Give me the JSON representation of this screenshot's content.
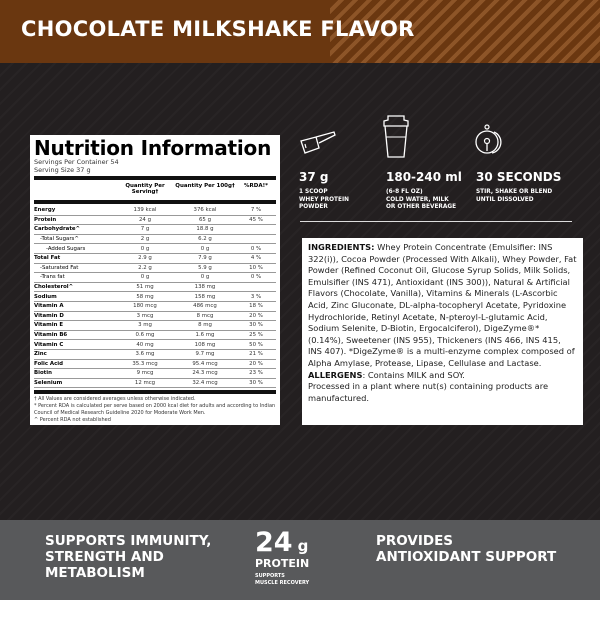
{
  "header": {
    "title": "CHOCOLATE MILKSHAKE FLAVOR",
    "color": "#6a3710"
  },
  "nutrition": {
    "title": "Nutrition Information",
    "servings_per_container": "Servings Per Container 54",
    "serving_size": "Serving Size 37 g",
    "columns": [
      "",
      "Quantity Per Serving†",
      "Quantity Per 100g†",
      "%RDA!*"
    ],
    "rows": [
      {
        "name": "Energy",
        "per_serving": "139 kcal",
        "per_100g": "376 kcal",
        "rda": "7 %"
      },
      {
        "name": "Protein",
        "per_serving": "24 g",
        "per_100g": "65 g",
        "rda": "45 %"
      },
      {
        "name": "Carbohydrate^",
        "per_serving": "7 g",
        "per_100g": "18.8 g",
        "rda": ""
      },
      {
        "name": "-Total Sugars^",
        "per_serving": "2 g",
        "per_100g": "6.2 g",
        "rda": ""
      },
      {
        "name": "-Added Sugars",
        "per_serving": "0 g",
        "per_100g": "0 g",
        "rda": "0 %"
      },
      {
        "name": "Total Fat",
        "per_serving": "2.9 g",
        "per_100g": "7.9 g",
        "rda": "4 %"
      },
      {
        "name": "-Saturated Fat",
        "per_serving": "2.2 g",
        "per_100g": "5.9 g",
        "rda": "10 %"
      },
      {
        "name": "-Trans fat",
        "per_serving": "0 g",
        "per_100g": "0 g",
        "rda": "0 %"
      },
      {
        "name": "Cholesterol^",
        "per_serving": "51 mg",
        "per_100g": "138 mg",
        "rda": ""
      },
      {
        "name": "Sodium",
        "per_serving": "58 mg",
        "per_100g": "158 mg",
        "rda": "3 %"
      },
      {
        "name": "Vitamin A",
        "per_serving": "180 mcg",
        "per_100g": "486 mcg",
        "rda": "18 %"
      },
      {
        "name": "Vitamin D",
        "per_serving": "3 mcg",
        "per_100g": "8 mcg",
        "rda": "20 %"
      },
      {
        "name": "Vitamin E",
        "per_serving": "3 mg",
        "per_100g": "8 mg",
        "rda": "30 %"
      },
      {
        "name": "Vitamin B6",
        "per_serving": "0.6 mg",
        "per_100g": "1.6 mg",
        "rda": "25 %"
      },
      {
        "name": "Vitamin C",
        "per_serving": "40 mg",
        "per_100g": "108 mg",
        "rda": "50 %"
      },
      {
        "name": "Zinc",
        "per_serving": "3.6 mg",
        "per_100g": "9.7 mg",
        "rda": "21 %"
      },
      {
        "name": "Folic Acid",
        "per_serving": "35.3 mcg",
        "per_100g": "95.4 mcg",
        "rda": "20 %"
      },
      {
        "name": "Biotin",
        "per_serving": "9 mcg",
        "per_100g": "24.3 mcg",
        "rda": "23 %"
      },
      {
        "name": "Selenium",
        "per_serving": "12 mcg",
        "per_100g": "32.4 mcg",
        "rda": "30 %"
      }
    ],
    "footnotes": [
      "† All Values are considered averages unless otherwise indicated.",
      "* Percent RDA is calculated per serve based on 2000 kcal diet for adults and according to Indian Council of Medical Research Guideline 2020 for Moderate Work Men.",
      "^ Percent RDA not established"
    ]
  },
  "directions": [
    {
      "icon": "scoop-icon",
      "value": "37 g",
      "text": [
        "1 SCOOP",
        "WHEY PROTEIN",
        "POWDER"
      ]
    },
    {
      "icon": "shaker-icon",
      "value": "180-240 ml",
      "text": [
        "(6-8 FL OZ)",
        "COLD WATER, MILK",
        "OR OTHER BEVERAGE"
      ]
    },
    {
      "icon": "timer-icon",
      "value": "30 SECONDS",
      "text": [
        "STIR, SHAKE OR BLEND",
        "UNTIL DISSOLVED"
      ]
    }
  ],
  "ingredients": {
    "label": "INGREDIENTS:",
    "text": " Whey Protein Concentrate (Emulsifier: INS 322(i)), Cocoa Powder (Processed With Alkali), Whey Powder, Fat Powder (Refined Coconut Oil, Glucose Syrup Solids, Milk Solids, Emulsifier (INS 471), Antioxidant (INS 300)), Natural & Artificial Flavors (Chocolate, Vanilla), Vitamins & Minerals (L-Ascorbic Acid, Zinc Gluconate, DL-alpha-tocopheryl Acetate, Pyridoxine Hydrochloride, Retinyl Acetate, N-pteroyl-L-glutamic Acid, Sodium Selenite, D-Biotin, Ergocalciferol), DigeZyme®* (0.14%), Sweetener (INS 955), Thickeners (INS 466, INS 415, INS 407). *DigeZyme® is a multi-enzyme complex composed of Alpha Amylase, Protease, Lipase, Cellulase and Lactase.",
    "allergens_label": "ALLERGENS",
    "allergens_text": ": Contains MILK and SOY.",
    "facility": "Processed in a plant where nut(s) containing products are manufactured."
  },
  "benefits": {
    "left": [
      "SUPPORTS IMMUNITY,",
      "STRENGTH AND",
      "METABOLISM"
    ],
    "protein_value": "24",
    "protein_unit": "g",
    "protein_label": "PROTEIN",
    "protein_sub": [
      "SUPPORTS",
      "MUSCLE RECOVERY"
    ],
    "right": [
      "PROVIDES",
      "ANTIOXIDANT SUPPORT"
    ]
  }
}
